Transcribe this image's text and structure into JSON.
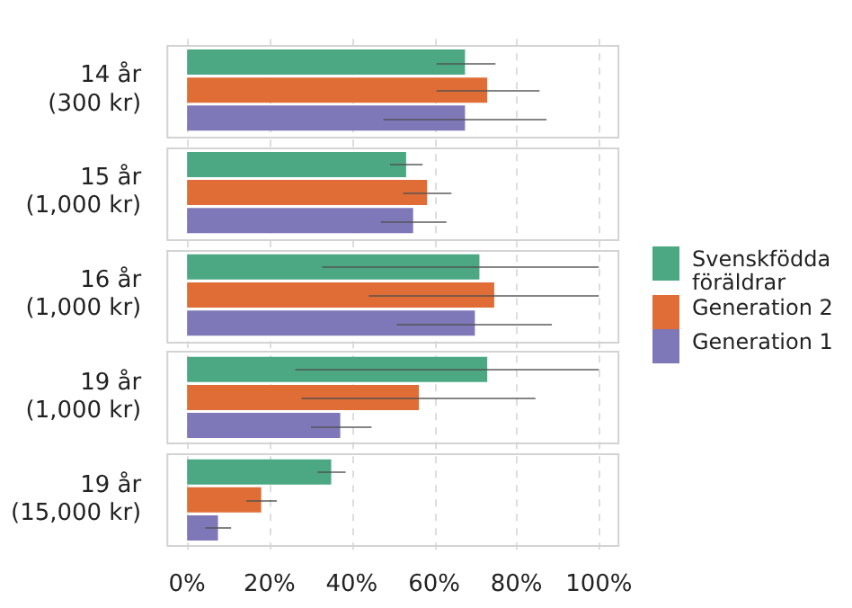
{
  "chart_data": {
    "type": "bar",
    "orientation": "horizontal",
    "categories": [
      "14 år\n(300 kr)",
      "15 år\n(1,000 kr)",
      "16 år\n(1,000 kr)",
      "19 år\n(1,000 kr)",
      "19 år\n(15,000 kr)"
    ],
    "series": [
      {
        "name": "Svenskfödda föräldrar",
        "color": "#4ba883",
        "values": [
          67.5,
          53.2,
          71,
          72.9,
          35
        ],
        "errors": [
          [
            60.6,
            74.9
          ],
          [
            49.3,
            57.2
          ],
          [
            32.8,
            100
          ],
          [
            26.3,
            100
          ],
          [
            31.7,
            38.5
          ]
        ]
      },
      {
        "name": "Generation 2",
        "color": "#df6d35",
        "values": [
          72.9,
          58.3,
          74.6,
          56.3,
          18
        ],
        "errors": [
          [
            60.6,
            85.6
          ],
          [
            52.5,
            64.2
          ],
          [
            44.1,
            100
          ],
          [
            27.8,
            84.6
          ],
          [
            14.4,
            21.8
          ]
        ]
      },
      {
        "name": "Generation 1",
        "color": "#7f78b8",
        "values": [
          67.5,
          54.9,
          69.9,
          37.2,
          7.5
        ],
        "errors": [
          [
            47.7,
            87.3
          ],
          [
            47.1,
            63
          ],
          [
            50.9,
            88.6
          ],
          [
            30.1,
            44.8
          ],
          [
            4.4,
            10.7
          ]
        ]
      }
    ],
    "xlim": [
      -5,
      105
    ],
    "xticks": [
      {
        "value": 0,
        "label": "0%"
      },
      {
        "value": 20,
        "label": "20%"
      },
      {
        "value": 40,
        "label": "40%"
      },
      {
        "value": 60,
        "label": "60%"
      },
      {
        "value": 80,
        "label": "80%"
      },
      {
        "value": 100,
        "label": "100%"
      }
    ],
    "grid": "x",
    "legend": "right"
  }
}
